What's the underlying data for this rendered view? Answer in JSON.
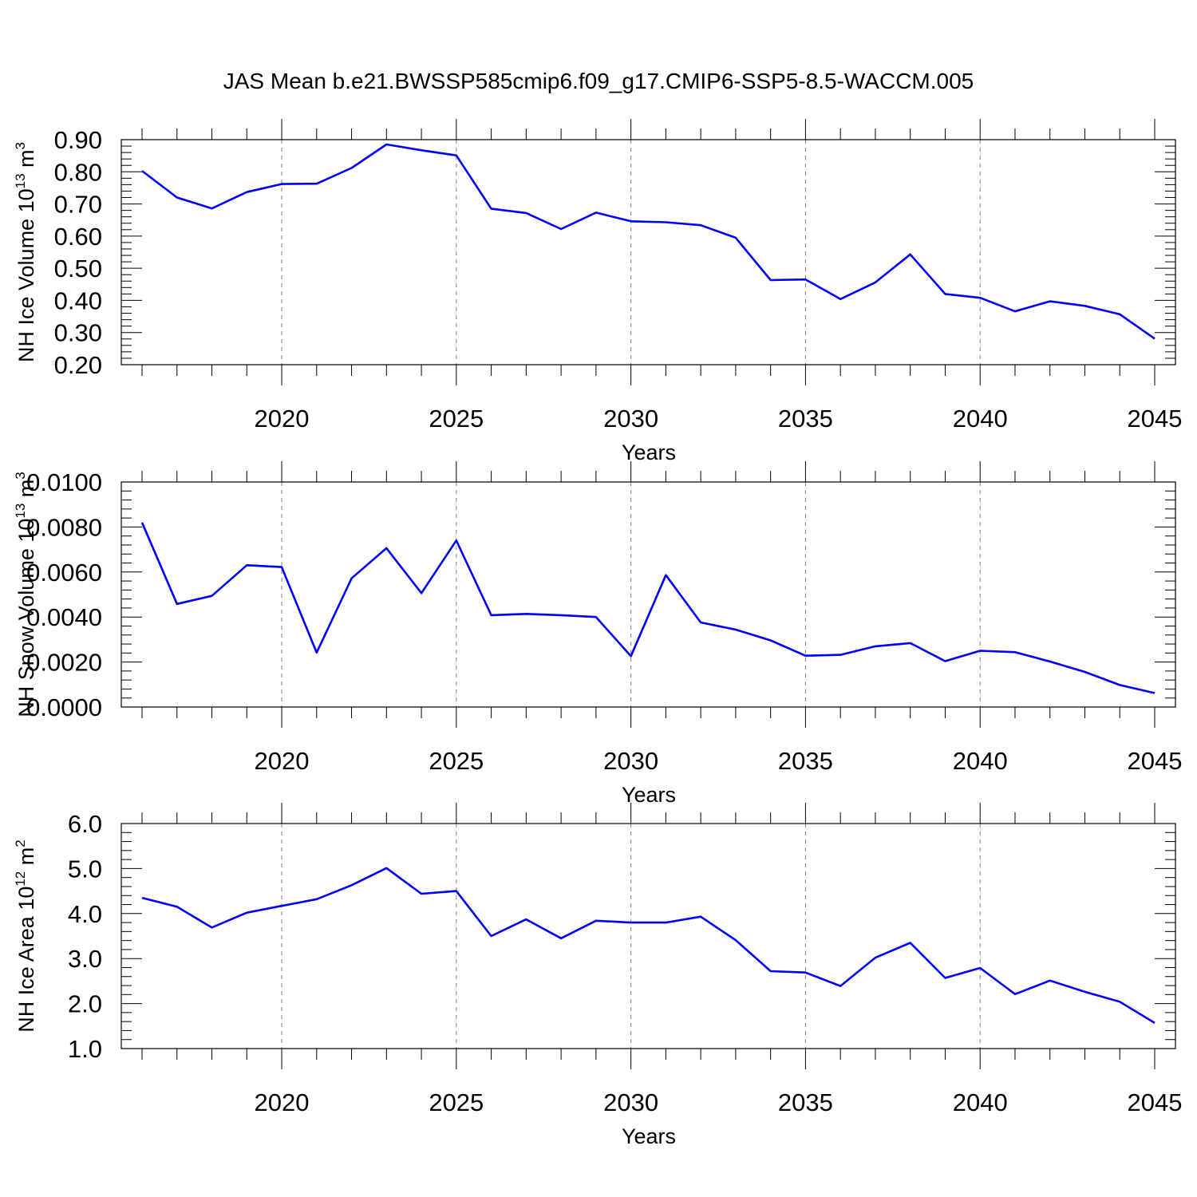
{
  "title": "JAS Mean b.e21.BWSSP585cmip6.f09_g17.CMIP6-SSP5-8.5-WACCM.005",
  "colors": {
    "line": "#0000ff",
    "axis": "#000000",
    "grid": "#808080"
  },
  "chart_data": [
    {
      "type": "line",
      "ylabel_main": "NH Ice Volume 10",
      "ylabel_sup": "13",
      "ylabel_unit": " m",
      "ylabel_unit_sup": "3",
      "xlabel": "Years",
      "xlim": [
        2016,
        2045
      ],
      "ylim": [
        0.2,
        0.9
      ],
      "yticks": [
        0.2,
        0.3,
        0.4,
        0.5,
        0.6,
        0.7,
        0.8,
        0.9
      ],
      "ytick_labels": [
        "0.20",
        "0.30",
        "0.40",
        "0.50",
        "0.60",
        "0.70",
        "0.80",
        "0.90"
      ],
      "xticks": [
        2020,
        2025,
        2030,
        2035,
        2040,
        2045
      ],
      "xtick_labels": [
        "2020",
        "2025",
        "2030",
        "2035",
        "2040",
        "2045"
      ],
      "x": [
        2016,
        2017,
        2018,
        2019,
        2020,
        2021,
        2022,
        2023,
        2024,
        2025,
        2026,
        2027,
        2028,
        2029,
        2030,
        2031,
        2032,
        2033,
        2034,
        2035,
        2036,
        2037,
        2038,
        2039,
        2040,
        2041,
        2042,
        2043,
        2044,
        2045
      ],
      "series": [
        {
          "name": "NH Ice Volume",
          "values": [
            0.803,
            0.72,
            0.686,
            0.737,
            0.762,
            0.763,
            0.812,
            0.885,
            0.867,
            0.851,
            0.685,
            0.672,
            0.622,
            0.673,
            0.646,
            0.643,
            0.634,
            0.595,
            0.463,
            0.465,
            0.404,
            0.456,
            0.543,
            0.42,
            0.408,
            0.366,
            0.397,
            0.383,
            0.357,
            0.281
          ]
        }
      ]
    },
    {
      "type": "line",
      "ylabel_main": "NH Snow Volume 10",
      "ylabel_sup": "13",
      "ylabel_unit": " m",
      "ylabel_unit_sup": "3",
      "xlabel": "Years",
      "xlim": [
        2016,
        2045
      ],
      "ylim": [
        0.0,
        0.01
      ],
      "yticks": [
        0.0,
        0.002,
        0.004,
        0.006,
        0.008,
        0.01
      ],
      "ytick_labels": [
        "0.0000",
        "0.0020",
        "0.0040",
        "0.0060",
        "0.0080",
        "0.0100"
      ],
      "xticks": [
        2020,
        2025,
        2030,
        2035,
        2040,
        2045
      ],
      "xtick_labels": [
        "2020",
        "2025",
        "2030",
        "2035",
        "2040",
        "2045"
      ],
      "x": [
        2016,
        2017,
        2018,
        2019,
        2020,
        2021,
        2022,
        2023,
        2024,
        2025,
        2026,
        2027,
        2028,
        2029,
        2030,
        2031,
        2032,
        2033,
        2034,
        2035,
        2036,
        2037,
        2038,
        2039,
        2040,
        2041,
        2042,
        2043,
        2044,
        2045
      ],
      "series": [
        {
          "name": "NH Snow Volume",
          "values": [
            0.0082,
            0.00458,
            0.00494,
            0.0063,
            0.00622,
            0.00242,
            0.00572,
            0.00706,
            0.00506,
            0.0074,
            0.00408,
            0.00414,
            0.00408,
            0.004,
            0.00226,
            0.00586,
            0.00376,
            0.00344,
            0.00296,
            0.00228,
            0.00232,
            0.0027,
            0.00284,
            0.00204,
            0.0025,
            0.00244,
            0.00202,
            0.00156,
            0.00098,
            0.00062
          ]
        }
      ]
    },
    {
      "type": "line",
      "ylabel_main": "NH Ice Area 10",
      "ylabel_sup": "12",
      "ylabel_unit": " m",
      "ylabel_unit_sup": "2",
      "xlabel": "Years",
      "xlim": [
        2016,
        2045
      ],
      "ylim": [
        1.0,
        6.0
      ],
      "yticks": [
        1.0,
        2.0,
        3.0,
        4.0,
        5.0,
        6.0
      ],
      "ytick_labels": [
        "1.0",
        "2.0",
        "3.0",
        "4.0",
        "5.0",
        "6.0"
      ],
      "xticks": [
        2020,
        2025,
        2030,
        2035,
        2040,
        2045
      ],
      "xtick_labels": [
        "2020",
        "2025",
        "2030",
        "2035",
        "2040",
        "2045"
      ],
      "x": [
        2016,
        2017,
        2018,
        2019,
        2020,
        2021,
        2022,
        2023,
        2024,
        2025,
        2026,
        2027,
        2028,
        2029,
        2030,
        2031,
        2032,
        2033,
        2034,
        2035,
        2036,
        2037,
        2038,
        2039,
        2040,
        2041,
        2042,
        2043,
        2044,
        2045
      ],
      "series": [
        {
          "name": "NH Ice Area",
          "values": [
            4.35,
            4.15,
            3.69,
            4.02,
            4.17,
            4.32,
            4.63,
            5.01,
            4.44,
            4.5,
            3.5,
            3.87,
            3.45,
            3.84,
            3.8,
            3.8,
            3.93,
            3.41,
            2.72,
            2.69,
            2.39,
            3.02,
            3.35,
            2.57,
            2.79,
            2.21,
            2.51,
            2.26,
            2.04,
            1.57
          ]
        }
      ]
    }
  ]
}
